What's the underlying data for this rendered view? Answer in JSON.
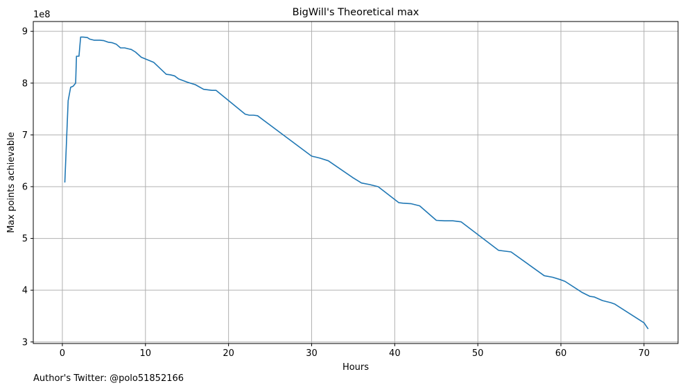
{
  "chart_data": {
    "type": "line",
    "title": "BigWill's Theoretical max",
    "xlabel": "Hours",
    "ylabel": "Max points achievable",
    "y_offset_label": "1e8",
    "xlim": [
      -3.5,
      74.1
    ],
    "ylim": [
      2.97,
      9.19
    ],
    "xticks": [
      0,
      10,
      20,
      30,
      40,
      50,
      60,
      70
    ],
    "yticks": [
      3,
      4,
      5,
      6,
      7,
      8,
      9
    ],
    "grid": true,
    "line_color": "#1f77b4",
    "series": [
      {
        "x": [
          0.3,
          0.7,
          1.0,
          1.3,
          1.6,
          1.7,
          1.8,
          2.0,
          2.2,
          2.5,
          3.0,
          3.3,
          3.8,
          4.5,
          5.0,
          5.5,
          6.0,
          6.5,
          7.0,
          7.5,
          8.0,
          8.3,
          8.8,
          9.5,
          11.0,
          12.5,
          13.0,
          13.5,
          14.0,
          15.0,
          16.0,
          17.0,
          18.0,
          18.5,
          22.0,
          22.5,
          23.0,
          23.5,
          30.0,
          30.5,
          31.0,
          32.0,
          35.0,
          36.0,
          37.0,
          38.0,
          40.5,
          41.0,
          42.0,
          43.0,
          45.0,
          46.0,
          47.0,
          48.0,
          52.5,
          53.0,
          54.0,
          58.0,
          59.0,
          60.0,
          60.5,
          62.5,
          63.5,
          64.0,
          65.0,
          66.0,
          66.5,
          70.0,
          70.5
        ],
        "y": [
          6.08,
          7.66,
          7.92,
          7.94,
          8.0,
          8.52,
          8.52,
          8.52,
          8.89,
          8.89,
          8.88,
          8.85,
          8.83,
          8.83,
          8.82,
          8.79,
          8.78,
          8.75,
          8.68,
          8.68,
          8.66,
          8.65,
          8.6,
          8.5,
          8.4,
          8.17,
          8.16,
          8.14,
          8.08,
          8.02,
          7.97,
          7.88,
          7.86,
          7.86,
          7.4,
          7.38,
          7.38,
          7.37,
          6.59,
          6.57,
          6.55,
          6.5,
          6.17,
          6.07,
          6.04,
          6.0,
          5.69,
          5.68,
          5.67,
          5.63,
          5.35,
          5.34,
          5.34,
          5.32,
          4.77,
          4.76,
          4.74,
          4.28,
          4.25,
          4.2,
          4.17,
          3.96,
          3.88,
          3.87,
          3.8,
          3.76,
          3.73,
          3.37,
          3.25
        ]
      }
    ]
  },
  "footer": {
    "note": "Author's Twitter: @polo51852166"
  }
}
